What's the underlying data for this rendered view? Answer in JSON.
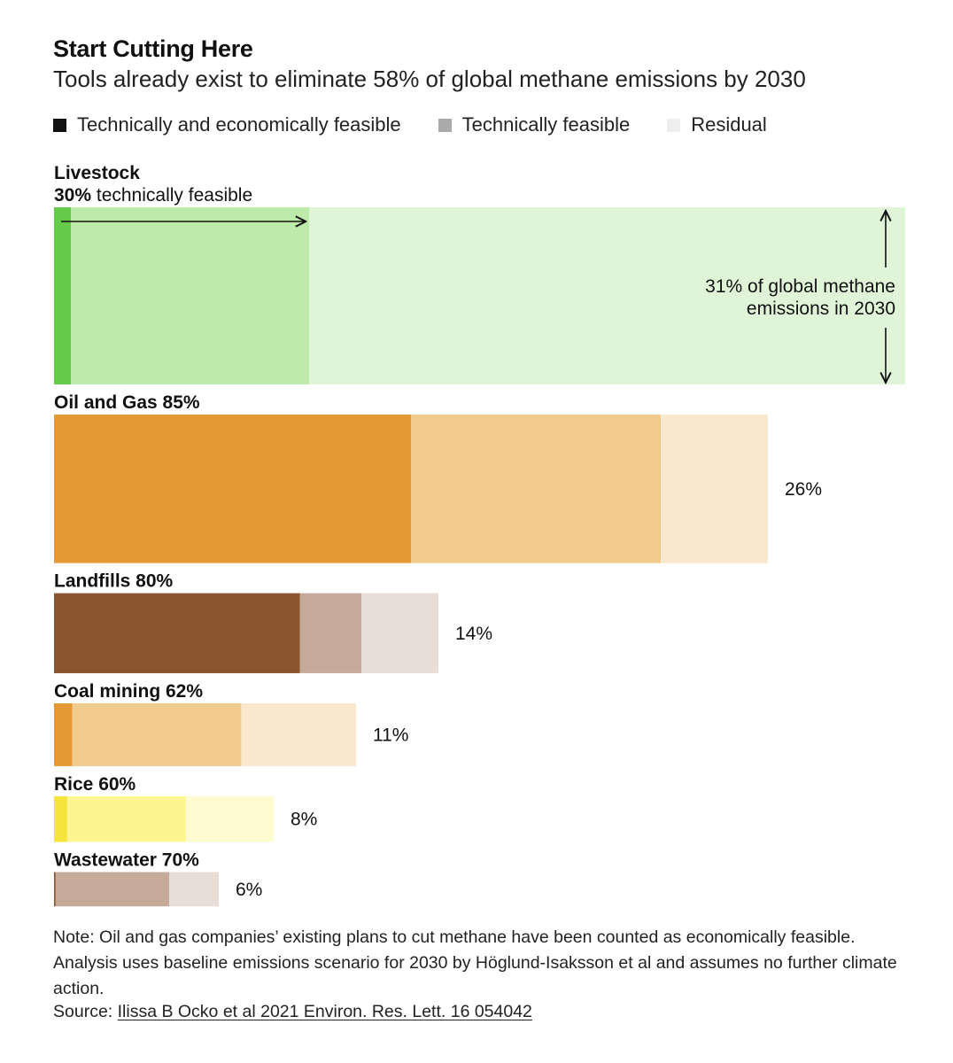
{
  "title": "Start Cutting Here",
  "subtitle": "Tools already exist to eliminate 58% of global methane emissions by 2030",
  "legend": [
    {
      "label": "Technically and economically feasible",
      "color": "#111111"
    },
    {
      "label": "Technically feasible",
      "color": "#aaaaaa"
    },
    {
      "label": "Residual",
      "color": "#eeeeee"
    }
  ],
  "annotations": {
    "livestock_sub_bold": "30%",
    "livestock_sub_text": " technically feasible",
    "livestock_share_line1": "31% of global methane",
    "livestock_share_line2": "emissions in 2030"
  },
  "chart_data": {
    "type": "bar",
    "orientation": "horizontal-stacked",
    "unit": "% of global methane emissions in 2030 (bar length); % of sector emissions (segments)",
    "series_names": [
      "Technically and economically feasible",
      "Technically feasible",
      "Residual"
    ],
    "sectors": [
      {
        "name": "Livestock",
        "label": "Livestock",
        "share": 31,
        "share_label": "31% of global methane emissions in 2030",
        "econ_pct": 2,
        "tech_pct": 30,
        "colors": [
          "#65c94a",
          "#bcebaa",
          "#e0f5d8"
        ]
      },
      {
        "name": "Oil and Gas",
        "label": "Oil and Gas 85%",
        "share": 26,
        "share_label": "26%",
        "econ_pct": 50,
        "tech_pct": 85,
        "colors": [
          "#e49935",
          "#f1cb8d",
          "#f9e8cd"
        ]
      },
      {
        "name": "Landfills",
        "label": "Landfills 80%",
        "share": 14,
        "share_label": "14%",
        "econ_pct": 64,
        "tech_pct": 80,
        "colors": [
          "#8b5530",
          "#c6aa99",
          "#e9ded6"
        ]
      },
      {
        "name": "Coal mining",
        "label": "Coal mining 62%",
        "share": 11,
        "share_label": "11%",
        "econ_pct": 6,
        "tech_pct": 62,
        "colors": [
          "#e49935",
          "#f1cb8d",
          "#f9e8cd"
        ]
      },
      {
        "name": "Rice",
        "label": "Rice 60%",
        "share": 8,
        "share_label": "8%",
        "econ_pct": 6,
        "tech_pct": 60,
        "colors": [
          "#f4e43b",
          "#fdf58f",
          "#fefad2"
        ]
      },
      {
        "name": "Wastewater",
        "label": "Wastewater 70%",
        "share": 6,
        "share_label": "6%",
        "econ_pct": 1,
        "tech_pct": 70,
        "colors": [
          "#8b5530",
          "#c6aa99",
          "#e9ded6"
        ]
      }
    ]
  },
  "note": "Note: Oil and gas companies’ existing plans to cut methane have been counted as economically feasible. Analysis uses baseline emissions scenario for 2030 by Höglund-Isaksson et al and assumes no further climate action.",
  "source_prefix": "Source: ",
  "source_link": "Ilissa B Ocko et al 2021 Environ. Res. Lett. 16 054042"
}
